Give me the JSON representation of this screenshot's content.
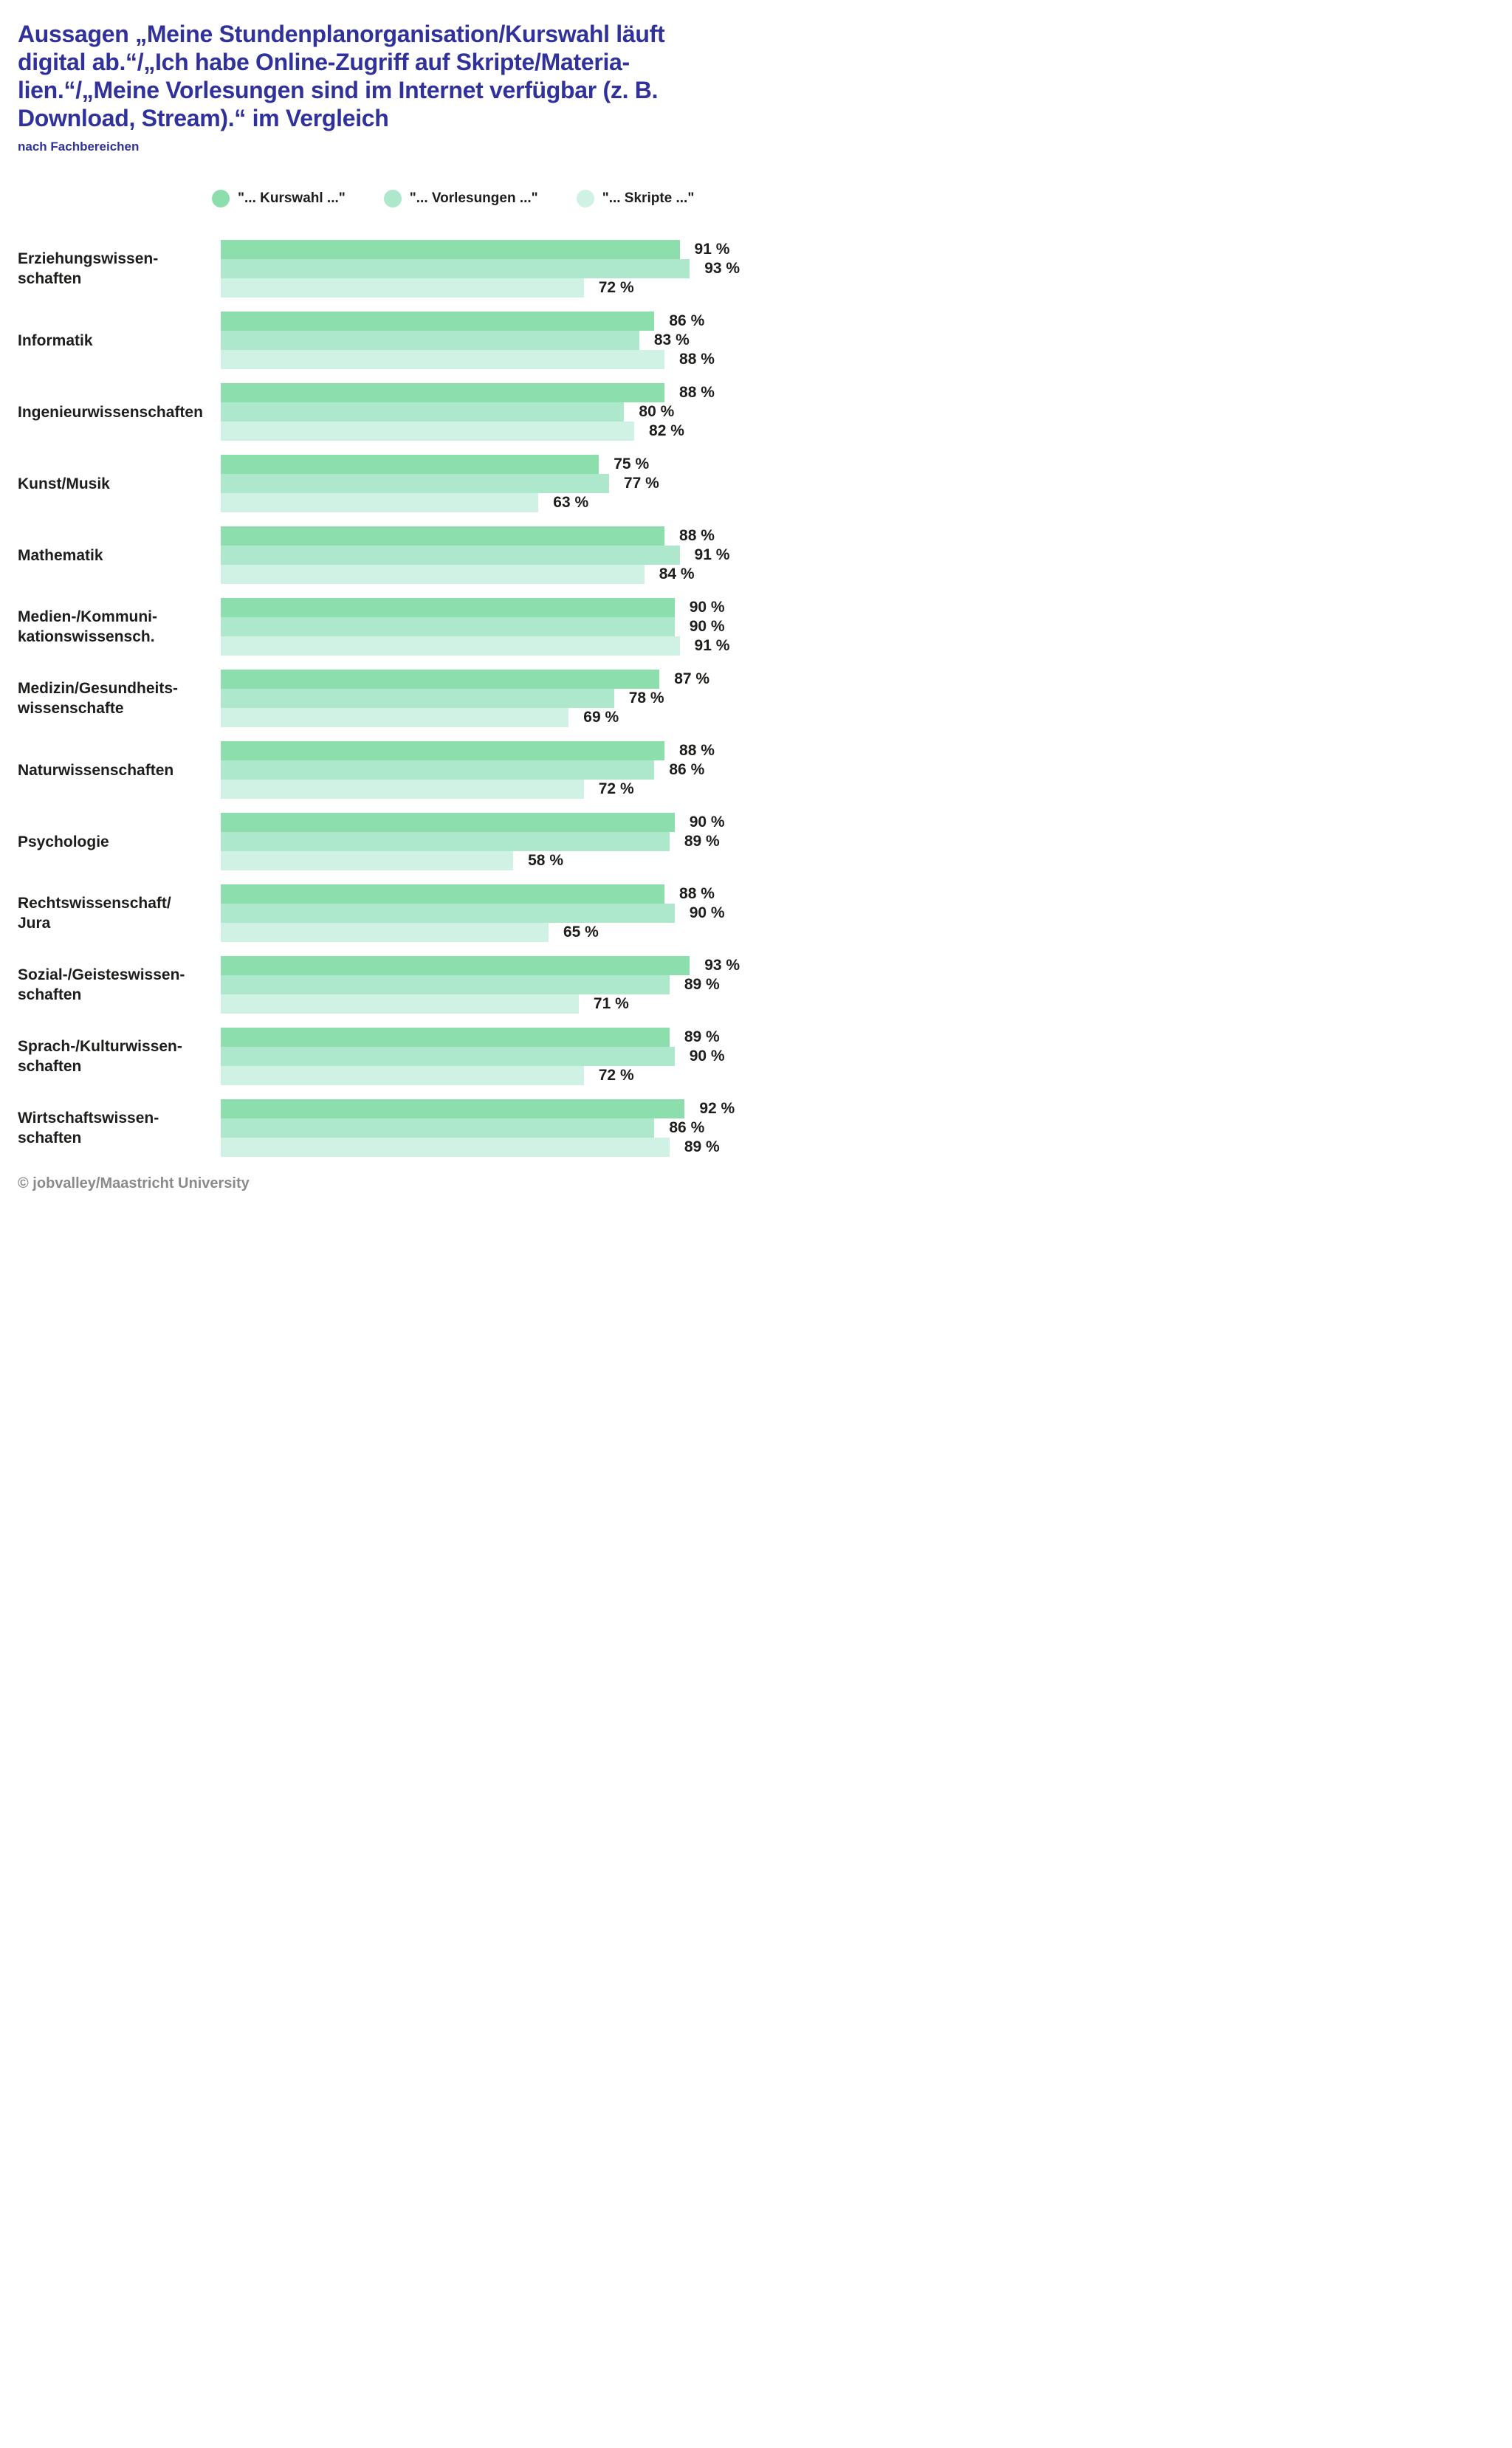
{
  "header": {
    "title": "Aussagen „Meine Stundenplanorganisation/Kurswahl läuft digital ab.“/„Ich habe Online-Zugriff auf Skripte/Materialien.“/„Meine Vorlesungen sind im Internet verfügbar (z. B. Download, Stream).“ im Vergleich",
    "title_lines": [
      "Aussagen „Meine Stundenplanorganisation/Kurswahl läuft",
      "digital ab.“/„Ich habe Online-Zugriff auf Skripte/Materia-",
      "lien.“/„Meine Vorlesungen sind im Internet verfügbar (z. B.",
      "Download, Stream).“ im Vergleich"
    ],
    "subtitle": "nach Fachbereichen"
  },
  "footer": {
    "copyright": "© jobvalley/Maastricht University"
  },
  "colors": {
    "title_text": "#30319B",
    "body_text": "#1D1D1B",
    "footer_text": "#8A8A8A",
    "series": [
      "#8CDFAD",
      "#ADE8CD",
      "#CFF2E4"
    ]
  },
  "chart_data": {
    "type": "bar",
    "orientation": "horizontal",
    "title": "Aussagen „Meine Stundenplanorganisation/Kurswahl läuft digital ab.“/„Ich habe Online-Zugriff auf Skripte/Materialien.“/„Meine Vorlesungen sind im Internet verfügbar (z. B. Download, Stream).“ im Vergleich",
    "subtitle": "nach Fachbereichen",
    "unit": "%",
    "value_suffix": " %",
    "xlim": [
      0,
      100
    ],
    "grid": false,
    "legend_position": "top",
    "categories": [
      "Erziehungswissenschaften",
      "Informatik",
      "Ingenieurwissenschaften",
      "Kunst/Musik",
      "Mathematik",
      "Medien-/Kommunikationswissensch.",
      "Medizin/Gesundheitswissenschafte",
      "Naturwissenschaften",
      "Psychologie",
      "Rechtswissenschaft/Jura",
      "Sozial-/Geisteswissenschaften",
      "Sprach-/Kulturwissenschaften",
      "Wirtschaftswissenschaften"
    ],
    "category_label_lines": [
      [
        "Erziehungswissen-",
        "schaften"
      ],
      [
        "Informatik"
      ],
      [
        "Ingenieurwissenschaften"
      ],
      [
        "Kunst/Musik"
      ],
      [
        "Mathematik"
      ],
      [
        "Medien-/Kommuni-",
        "kationswissensch."
      ],
      [
        "Medizin/Gesundheits-",
        "wissenschafte"
      ],
      [
        "Naturwissenschaften"
      ],
      [
        "Psychologie"
      ],
      [
        "Rechtswissenschaft/",
        "Jura"
      ],
      [
        "Sozial-/Geisteswissen-",
        "schaften"
      ],
      [
        "Sprach-/Kulturwissen-",
        "schaften"
      ],
      [
        "Wirtschaftswissen-",
        "schaften"
      ]
    ],
    "series": [
      {
        "key": "kurswahl",
        "name": "\"... Kurswahl ...\"",
        "color": "#8CDFAD",
        "values": [
          91,
          86,
          88,
          75,
          88,
          90,
          87,
          88,
          90,
          88,
          93,
          89,
          92
        ]
      },
      {
        "key": "vorlesungen",
        "name": "\"... Vorlesungen ...\"",
        "color": "#ADE8CD",
        "values": [
          93,
          83,
          80,
          77,
          91,
          90,
          78,
          86,
          89,
          90,
          89,
          90,
          86
        ]
      },
      {
        "key": "skripte",
        "name": "\"... Skripte ...\"",
        "color": "#CFF2E4",
        "values": [
          72,
          88,
          82,
          63,
          84,
          91,
          69,
          72,
          58,
          65,
          71,
          72,
          89
        ]
      }
    ]
  }
}
